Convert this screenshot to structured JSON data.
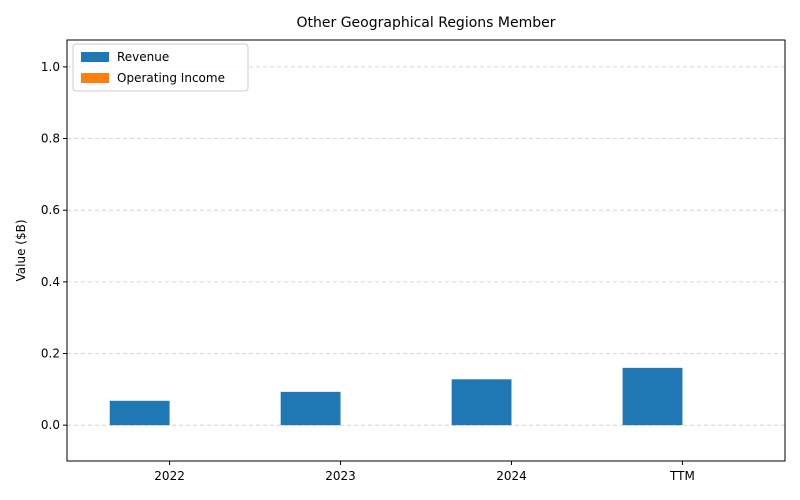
{
  "chart_data": {
    "type": "bar",
    "title": "Other Geographical Regions Member",
    "xlabel": "",
    "ylabel": "Value ($B)",
    "categories": [
      "2022",
      "2023",
      "2024",
      "TTM"
    ],
    "series": [
      {
        "name": "Revenue",
        "color": "#1f77b4",
        "values": [
          0.068,
          0.093,
          0.128,
          0.16
        ]
      },
      {
        "name": "Operating Income",
        "color": "#ff7f0e",
        "values": [
          0,
          0,
          0,
          0
        ]
      }
    ],
    "ylim": [
      -0.1,
      1.075
    ],
    "yticks": [
      0.0,
      0.2,
      0.4,
      0.6,
      0.8,
      1.0
    ],
    "ytick_labels": [
      "0.0",
      "0.2",
      "0.4",
      "0.6",
      "0.8",
      "1.0"
    ],
    "grid": "y-dashed",
    "legend_position": "top-left"
  }
}
